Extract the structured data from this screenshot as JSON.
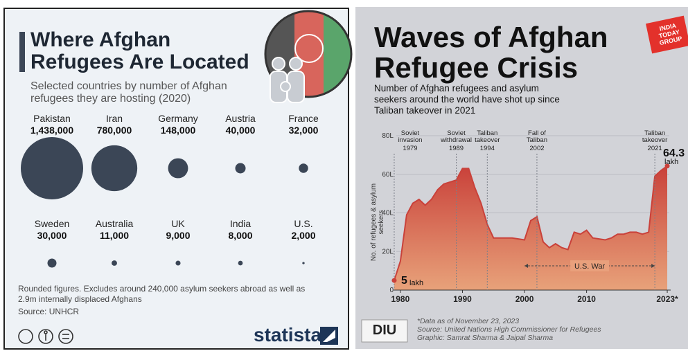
{
  "chart_data": [
    {
      "type": "bubble",
      "title": "Where Afghan Refugees Are Located",
      "subtitle": "Selected countries by number of Afghan refugees they are hosting (2020)",
      "categories": [
        "Pakistan",
        "Iran",
        "Germany",
        "Austria",
        "France",
        "Sweden",
        "Australia",
        "UK",
        "India",
        "U.S."
      ],
      "values": [
        1438000,
        780000,
        148000,
        40000,
        32000,
        30000,
        11000,
        9000,
        8000,
        2000
      ],
      "value_labels": [
        "1,438,000",
        "780,000",
        "148,000",
        "40,000",
        "32,000",
        "30,000",
        "11,000",
        "9,000",
        "8,000",
        "2,000"
      ],
      "color": "#3b4656",
      "note": "Rounded figures. Excludes around 240,000 asylum seekers abroad as well as 2.9m internally displaced Afghans",
      "source": "Source: UNHCR",
      "brand": "statista"
    },
    {
      "type": "area",
      "title": "Waves of Afghan Refugee Crisis",
      "subtitle": "Number of Afghan refugees and asylum seekers around the world have shot up since Taliban takeover in 2021",
      "ylabel": "No. of refugees & asylum seekers",
      "unit": "lakh",
      "x": [
        1979,
        1980,
        1981,
        1982,
        1983,
        1984,
        1985,
        1986,
        1987,
        1988,
        1989,
        1990,
        1991,
        1992,
        1993,
        1994,
        1995,
        1996,
        1997,
        1998,
        1999,
        2000,
        2001,
        2002,
        2003,
        2004,
        2005,
        2006,
        2007,
        2008,
        2009,
        2010,
        2011,
        2012,
        2013,
        2014,
        2015,
        2016,
        2017,
        2018,
        2019,
        2020,
        2021,
        2022,
        2023
      ],
      "values": [
        5,
        15,
        39,
        45,
        47,
        44,
        47,
        52,
        55,
        56,
        57,
        63,
        63,
        53,
        45,
        34,
        27,
        27,
        27,
        27,
        26.5,
        26,
        36,
        38,
        25,
        22,
        24,
        22,
        21,
        30,
        29,
        31,
        27,
        26.5,
        26,
        27,
        29,
        29,
        30,
        30,
        29,
        30,
        59,
        62,
        64.3
      ],
      "color": "#c9413a",
      "xlim": [
        1978,
        2024
      ],
      "ylim": [
        0,
        80
      ],
      "xticks": [
        1980,
        1990,
        2000,
        2010,
        {
          "value": 2023,
          "label": "2023*"
        }
      ],
      "yticks": [
        0,
        {
          "value": 20,
          "label": "20L"
        },
        {
          "value": 40,
          "label": "40L"
        },
        {
          "value": 60,
          "label": "60L"
        },
        {
          "value": 80,
          "label": "80L"
        }
      ],
      "grid": true,
      "events": [
        {
          "text": "Soviet invasion",
          "year": 1979
        },
        {
          "text": "Soviet withdrawal",
          "year": 1989
        },
        {
          "text": "Taliban takeover",
          "year": 1994
        },
        {
          "text": "Fall of Taliban",
          "year": 2002
        },
        {
          "text": "Taliban takeover",
          "year": 2021
        }
      ],
      "span": {
        "text": "U.S. War",
        "from": 2000,
        "to": 2021
      },
      "footnote": "*Data as of November 23, 2023",
      "source": "Source: United Nations High Commissioner for Refugees",
      "credit": "Graphic: Samrat Sharma & Jaipal Sharma",
      "brand": "DIU",
      "publisher": "INDIA TODAY GROUP"
    }
  ]
}
